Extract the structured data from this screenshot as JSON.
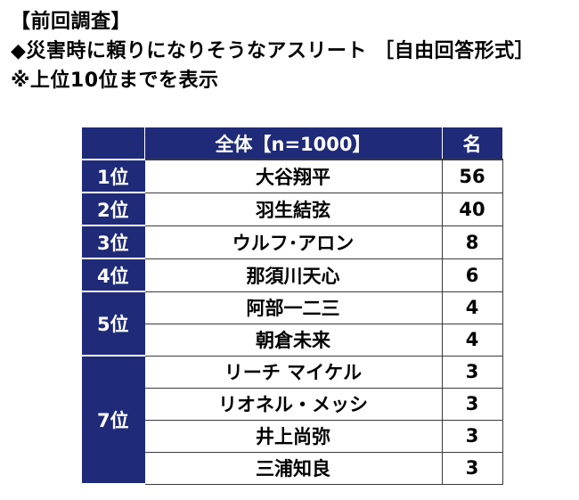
{
  "heading": {
    "line1": "【前回調査】",
    "line2": "◆災害時に頼りになりそうなアスリート ［自由回答形式］",
    "line3": "※上位10位までを表示"
  },
  "table": {
    "header_group": "全体【n=1000】",
    "header_unit": "名",
    "rows": [
      {
        "rank": "1位",
        "name": "大谷翔平",
        "count": "56"
      },
      {
        "rank": "2位",
        "name": "羽生結弦",
        "count": "40"
      },
      {
        "rank": "3位",
        "name": "ウルフ･アロン",
        "count": "8"
      },
      {
        "rank": "4位",
        "name": "那須川天心",
        "count": "6"
      },
      {
        "rank": "5位",
        "name": "阿部一二三",
        "count": "4"
      },
      {
        "rank": "",
        "name": "朝倉未来",
        "count": "4"
      },
      {
        "rank": "7位",
        "name": "リーチ マイケル",
        "count": "3"
      },
      {
        "rank": "",
        "name": "リオネル・メッシ",
        "count": "3"
      },
      {
        "rank": "",
        "name": "井上尚弥",
        "count": "3"
      },
      {
        "rank": "",
        "name": "三浦知良",
        "count": "3"
      }
    ]
  },
  "colors": {
    "header_bg": "#1f2a78",
    "header_text": "#ffffff",
    "border": "#3a3a3a"
  }
}
